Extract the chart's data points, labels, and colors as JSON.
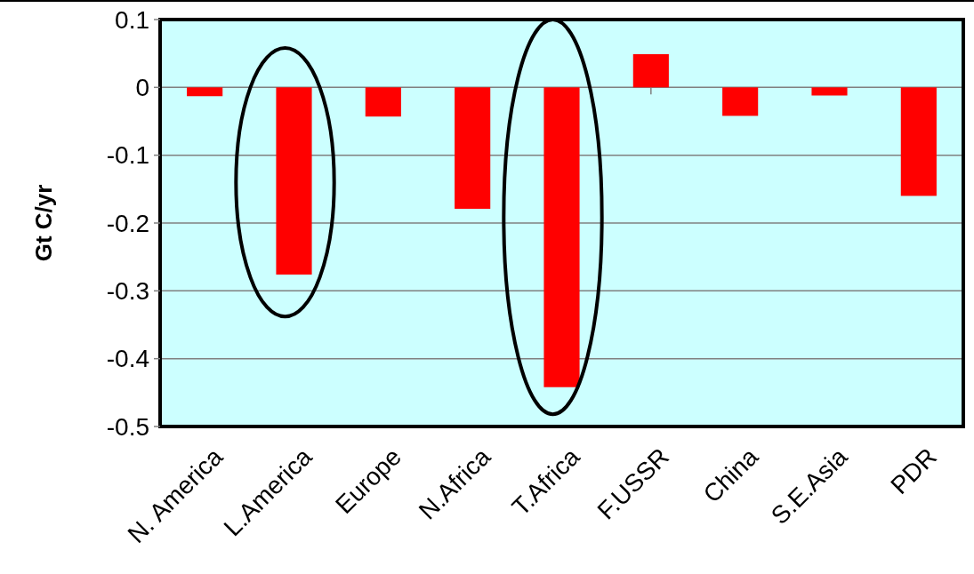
{
  "chart_data": {
    "type": "bar",
    "ylabel": "Gt C/yr",
    "categories": [
      "N. America",
      "L.America",
      "Europe",
      "N.Africa",
      "T.Africa",
      "F.USSR",
      "China",
      "S.E.Asia",
      "PDR"
    ],
    "values": [
      -0.013,
      -0.276,
      -0.043,
      -0.179,
      -0.442,
      0.049,
      -0.042,
      -0.012,
      -0.16
    ],
    "color": "#ff0000",
    "ylim": [
      -0.5,
      0.1
    ],
    "yticks": [
      {
        "value": -0.5,
        "label": "-0.5"
      },
      {
        "value": -0.4,
        "label": "-0.4"
      },
      {
        "value": -0.3,
        "label": "-0.3"
      },
      {
        "value": -0.2,
        "label": "-0.2"
      },
      {
        "value": -0.1,
        "label": "-0.1"
      },
      0,
      0.1
    ],
    "grid": "y"
  }
}
